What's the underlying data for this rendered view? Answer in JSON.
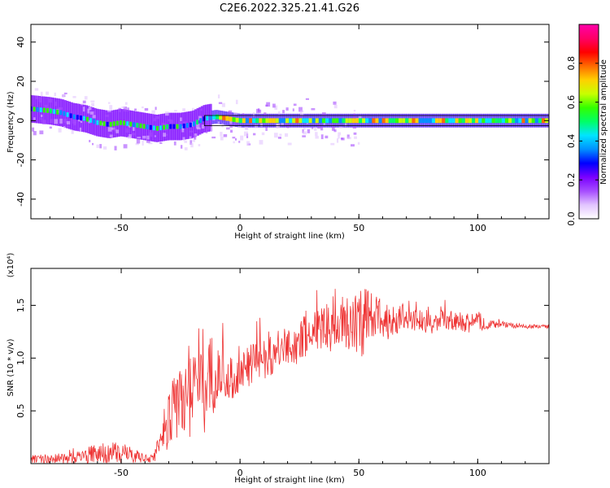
{
  "title": "C2E6.2022.325.21.41.G26",
  "chart_data": [
    {
      "type": "heatmap",
      "xlabel": "Height of straight line (km)",
      "ylabel": "Frequency (Hz)",
      "xlim": [
        -88,
        130
      ],
      "ylim": [
        -50,
        49
      ],
      "xticks": [
        "-50",
        "0",
        "50",
        "100"
      ],
      "yticks": [
        "-40",
        "-20",
        "0",
        "20",
        "40"
      ],
      "colorbar": {
        "label": "Normalized spectral amplitude",
        "range": [
          0,
          1
        ],
        "ticks": [
          "0.0",
          "0.2",
          "0.4",
          "0.6",
          "0.8"
        ],
        "colors": [
          "#ffffff",
          "#e2c4ff",
          "#a64dff",
          "#7a00ff",
          "#0000ff",
          "#0090ff",
          "#00e5ff",
          "#00ff66",
          "#33ff00",
          "#c8ff00",
          "#ffd000",
          "#ff6a00",
          "#ff0000",
          "#ff0066",
          "#ff00aa"
        ]
      },
      "trace": {
        "x": [
          -88,
          -80,
          -75,
          -70,
          -65,
          -60,
          -55,
          -50,
          -45,
          -40,
          -35,
          -30,
          -25,
          -20,
          -15,
          -10,
          0,
          50,
          100,
          130
        ],
        "y": [
          6,
          5,
          4,
          2,
          1,
          -1,
          -2,
          -1,
          -2,
          -3,
          -4,
          -3,
          -3,
          -2,
          1,
          2,
          0,
          0,
          0,
          0
        ]
      }
    },
    {
      "type": "line",
      "xlabel": "Height of straight line (km)",
      "ylabel": "SNR (10 * v/v)",
      "y_multiplier": "(x10⁴)",
      "xlim": [
        -88,
        130
      ],
      "ylim": [
        0,
        1.85
      ],
      "xticks": [
        "-50",
        "0",
        "50",
        "100"
      ],
      "yticks": [
        "0.5",
        "1.0",
        "1.5"
      ],
      "color": "#ee3333",
      "envelope": {
        "x": [
          -88,
          -70,
          -60,
          -50,
          -40,
          -36,
          -33,
          -25,
          -20,
          -15,
          -10,
          -5,
          0,
          5,
          10,
          15,
          20,
          25,
          30,
          35,
          40,
          45,
          50,
          55,
          60,
          65,
          70,
          75,
          80,
          85,
          90,
          95,
          100,
          105,
          110,
          120,
          130
        ],
        "mid": [
          0.04,
          0.05,
          0.1,
          0.1,
          0.05,
          0.06,
          0.3,
          0.6,
          0.78,
          0.8,
          0.85,
          0.8,
          0.85,
          0.95,
          1.0,
          1.05,
          1.1,
          1.15,
          1.25,
          1.3,
          1.3,
          1.35,
          1.35,
          1.38,
          1.38,
          1.35,
          1.4,
          1.35,
          1.33,
          1.35,
          1.35,
          1.33,
          1.35,
          1.32,
          1.32,
          1.3,
          1.3
        ],
        "amp": [
          0.04,
          0.05,
          0.1,
          0.1,
          0.04,
          0.05,
          0.2,
          0.4,
          0.55,
          0.55,
          0.3,
          0.2,
          0.2,
          0.2,
          0.2,
          0.2,
          0.2,
          0.2,
          0.22,
          0.22,
          0.25,
          0.28,
          0.4,
          0.25,
          0.2,
          0.18,
          0.12,
          0.1,
          0.1,
          0.1,
          0.1,
          0.1,
          0.1,
          0.04,
          0.03,
          0.02,
          0.02
        ]
      }
    }
  ]
}
